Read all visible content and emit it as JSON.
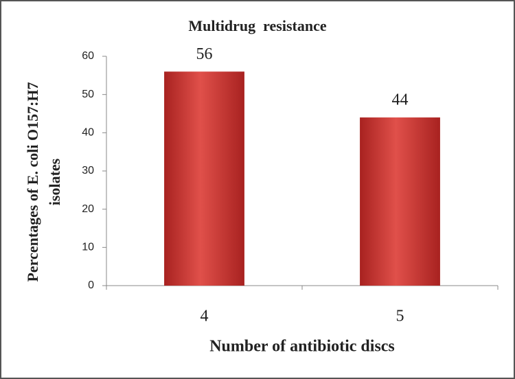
{
  "chart_data": {
    "type": "bar",
    "title": "Multidrug  resistance",
    "ylabel": [
      "Percentages of E. coli O157:H7",
      "isolates"
    ],
    "xlabel": "Number of antibiotic discs",
    "categories": [
      "4",
      "5"
    ],
    "values": [
      56,
      44
    ],
    "color": "#c0302e",
    "ylim": [
      0,
      60
    ],
    "yticks": [
      0,
      10,
      20,
      30,
      40,
      50,
      60
    ],
    "grid": false
  }
}
